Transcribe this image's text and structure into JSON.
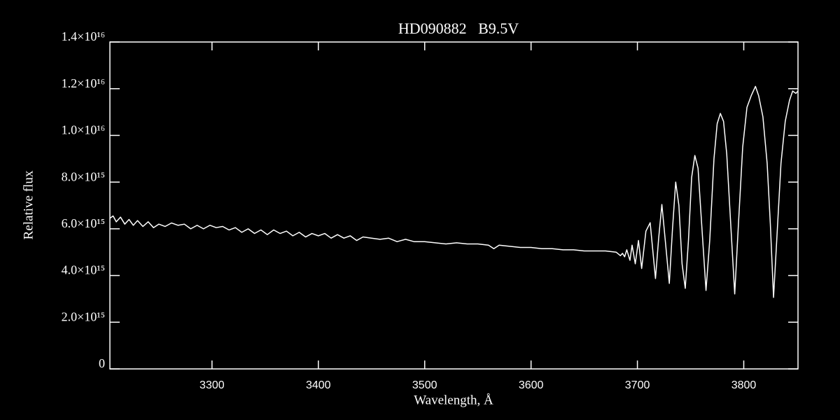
{
  "chart_data": {
    "type": "line",
    "title": "HD090882   B9.5V",
    "x_label": "Wavelength, Å",
    "y_label": "Relative flux",
    "xlim": [
      3204,
      3851
    ],
    "xticks": [
      3300,
      3400,
      3500,
      3600,
      3700,
      3800
    ],
    "ylim": [
      0,
      1.4e+16
    ],
    "yticks": [
      0,
      {
        "value": 2000000000000000.0,
        "label": "2.0×10¹⁵"
      },
      {
        "value": 4000000000000000.0,
        "label": "4.0×10¹⁵"
      },
      {
        "value": 6000000000000000.0,
        "label": "6.0×10¹⁵"
      },
      {
        "value": 8000000000000000.0,
        "label": "8.0×10¹⁵"
      },
      {
        "value": 1e+16,
        "label": "1.0×10¹⁶"
      },
      {
        "value": 1.2e+16,
        "label": "1.2×10¹⁶"
      },
      {
        "value": 1.4e+16,
        "label": "1.4×10¹⁶"
      }
    ],
    "series": [
      {
        "color": "#ffffff",
        "x": [
          3204,
          3207,
          3210,
          3214,
          3218,
          3222,
          3226,
          3230,
          3235,
          3240,
          3245,
          3250,
          3256,
          3262,
          3268,
          3274,
          3280,
          3286,
          3292,
          3298,
          3304,
          3310,
          3316,
          3322,
          3328,
          3334,
          3340,
          3346,
          3352,
          3358,
          3364,
          3370,
          3376,
          3382,
          3388,
          3394,
          3400,
          3406,
          3412,
          3418,
          3424,
          3430,
          3436,
          3442,
          3450,
          3458,
          3466,
          3474,
          3482,
          3490,
          3500,
          3510,
          3520,
          3530,
          3540,
          3550,
          3560,
          3565,
          3570,
          3580,
          3590,
          3600,
          3610,
          3620,
          3630,
          3640,
          3650,
          3660,
          3670,
          3680,
          3684,
          3686,
          3688,
          3690,
          3693,
          3695,
          3698,
          3701,
          3704,
          3708,
          3712,
          3714,
          3717,
          3720,
          3723,
          3726,
          3730,
          3733,
          3736,
          3739,
          3742,
          3745,
          3748,
          3751,
          3754,
          3757,
          3760,
          3764.5,
          3768,
          3772,
          3775,
          3778,
          3781,
          3784,
          3788,
          3791.5,
          3795,
          3799,
          3803,
          3807,
          3811,
          3814,
          3818,
          3822,
          3825,
          3828,
          3831,
          3835,
          3839,
          3843,
          3846,
          3849,
          3851
        ],
        "values": [
          6450000000000000.0,
          6550000000000000.0,
          6300000000000000.0,
          6500000000000000.0,
          6200000000000000.0,
          6400000000000000.0,
          6150000000000000.0,
          6350000000000000.0,
          6100000000000000.0,
          6300000000000000.0,
          6050000000000000.0,
          6200000000000000.0,
          6100000000000000.0,
          6250000000000000.0,
          6150000000000000.0,
          6200000000000000.0,
          6000000000000000.0,
          6150000000000000.0,
          6000000000000000.0,
          6150000000000000.0,
          6050000000000000.0,
          6100000000000000.0,
          5950000000000000.0,
          6050000000000000.0,
          5850000000000000.0,
          6000000000000000.0,
          5800000000000000.0,
          5950000000000000.0,
          5750000000000000.0,
          5950000000000000.0,
          5800000000000000.0,
          5900000000000000.0,
          5700000000000000.0,
          5850000000000000.0,
          5650000000000000.0,
          5800000000000000.0,
          5700000000000000.0,
          5800000000000000.0,
          5600000000000000.0,
          5750000000000000.0,
          5600000000000000.0,
          5700000000000000.0,
          5500000000000000.0,
          5650000000000000.0,
          5600000000000000.0,
          5550000000000000.0,
          5600000000000000.0,
          5450000000000000.0,
          5550000000000000.0,
          5450000000000000.0,
          5450000000000000.0,
          5400000000000000.0,
          5350000000000000.0,
          5400000000000000.0,
          5350000000000000.0,
          5350000000000000.0,
          5300000000000000.0,
          5150000000000000.0,
          5300000000000000.0,
          5250000000000000.0,
          5200000000000000.0,
          5200000000000000.0,
          5150000000000000.0,
          5150000000000000.0,
          5100000000000000.0,
          5100000000000000.0,
          5050000000000000.0,
          5050000000000000.0,
          5050000000000000.0,
          5000000000000000.0,
          4850000000000000.0,
          4950000000000000.0,
          4800000000000000.0,
          5100000000000000.0,
          4650000000000000.0,
          5300000000000000.0,
          4500000000000000.0,
          5500000000000000.0,
          4300000000000000.0,
          5900000000000000.0,
          6260000000000000.0,
          5300000000000000.0,
          3870000000000000.0,
          5600000000000000.0,
          7040000000000000.0,
          5600000000000000.0,
          3660000000000000.0,
          6000000000000000.0,
          8000000000000000.0,
          7000000000000000.0,
          4500000000000000.0,
          3450000000000000.0,
          5500000000000000.0,
          8200000000000000.0,
          9140000000000000.0,
          8600000000000000.0,
          6500000000000000.0,
          3360000000000000.0,
          5500000000000000.0,
          9000000000000000.0,
          1.05e+16,
          1.094e+16,
          1.06e+16,
          9200000000000000.0,
          6000000000000000.0,
          3210000000000000.0,
          6200000000000000.0,
          9500000000000000.0,
          1.12e+16,
          1.17e+16,
          1.21e+16,
          1.17e+16,
          1.08e+16,
          8800000000000000.0,
          6200000000000000.0,
          3060000000000000.0,
          5500000000000000.0,
          8800000000000000.0,
          1.06e+16,
          1.15e+16,
          1.19e+16,
          1.18e+16,
          1.19e+16
        ]
      }
    ]
  }
}
